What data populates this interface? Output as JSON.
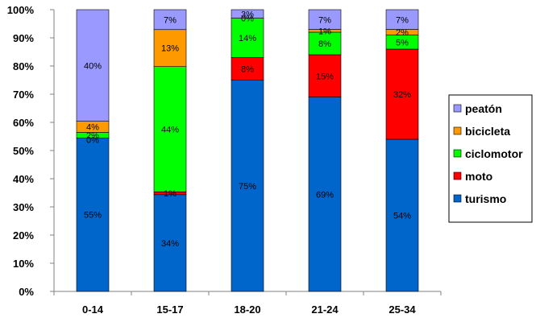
{
  "chart_data": {
    "type": "bar",
    "stacked": "percent",
    "categories": [
      "0-14",
      "15-17",
      "18-20",
      "21-24",
      "25-34"
    ],
    "series": [
      {
        "name": "turismo",
        "color": "#0066CC",
        "values": [
          55,
          34,
          75,
          69,
          54
        ],
        "labels": [
          "55%",
          "34%",
          "75%",
          "69%",
          "54%"
        ]
      },
      {
        "name": "moto",
        "color": "#FF0000",
        "values": [
          0,
          1,
          8,
          15,
          32
        ],
        "labels": [
          "",
          "1%",
          "8%",
          "15%",
          "32%"
        ]
      },
      {
        "name": "ciclomotor",
        "color": "#00FF00",
        "values": [
          2,
          44,
          14,
          8,
          5
        ],
        "labels": [
          "2%",
          "44%",
          "14%",
          "8%",
          "5%"
        ]
      },
      {
        "name": "bicicleta",
        "color": "#FF9900",
        "values": [
          4,
          13,
          0,
          1,
          2
        ],
        "labels": [
          "4%",
          "13%",
          "0%",
          "1%",
          "2%"
        ]
      },
      {
        "name": "peatón",
        "color": "#9999FF",
        "values": [
          40,
          7,
          3,
          7,
          7
        ],
        "labels": [
          "40%",
          "7%",
          "3%",
          "7%",
          "7%"
        ]
      }
    ],
    "extra_labels": [
      {
        "category": "0-14",
        "text": "0%"
      }
    ],
    "y_ticks": [
      "0%",
      "10%",
      "20%",
      "30%",
      "40%",
      "50%",
      "60%",
      "70%",
      "80%",
      "90%",
      "100%"
    ],
    "ylim": [
      0,
      100
    ],
    "grid": false,
    "legend": {
      "position": "right",
      "order": [
        "peatón",
        "bicicleta",
        "ciclomotor",
        "moto",
        "turismo"
      ]
    },
    "title": "",
    "xlabel": "",
    "ylabel": ""
  }
}
